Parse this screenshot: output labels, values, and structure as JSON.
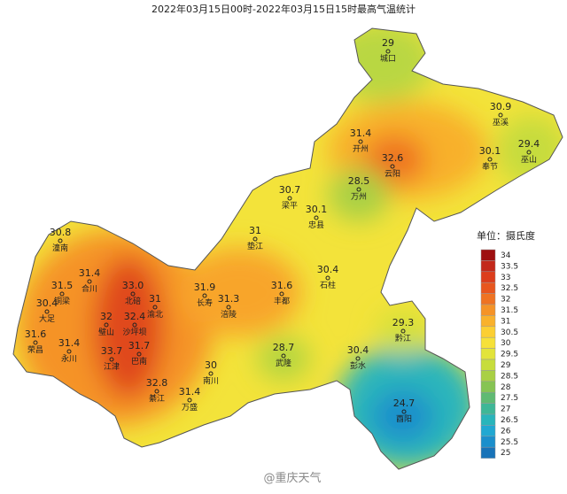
{
  "title": "2022年03月15日00时-2022年03月15日15时最高气温统计",
  "stations": [
    {
      "value": "29",
      "name": "城口"
    },
    {
      "value": "30.9",
      "name": "巫溪"
    },
    {
      "value": "31.4",
      "name": "开州"
    },
    {
      "value": "32.6",
      "name": "云阳"
    },
    {
      "value": "30.1",
      "name": "奉节"
    },
    {
      "value": "29.4",
      "name": "巫山"
    },
    {
      "value": "28.5",
      "name": "万州"
    },
    {
      "value": "30.7",
      "name": "梁平"
    },
    {
      "value": "31",
      "name": "垫江"
    },
    {
      "value": "30.1",
      "name": "忠县"
    },
    {
      "value": "30.4",
      "name": "石柱"
    },
    {
      "value": "31.6",
      "name": "丰都"
    },
    {
      "value": "31.9",
      "name": "长寿"
    },
    {
      "value": "31.3",
      "name": "涪陵"
    },
    {
      "value": "30.8",
      "name": "潼南"
    },
    {
      "value": "31.4",
      "name": "合川"
    },
    {
      "value": "33.0",
      "name": "北碚"
    },
    {
      "value": "31",
      "name": "渝北"
    },
    {
      "value": "31.5",
      "name": "铜梁"
    },
    {
      "value": "30.4",
      "name": "大足"
    },
    {
      "value": "32",
      "name": "璧山"
    },
    {
      "value": "32.4",
      "name": "沙坪坝"
    },
    {
      "value": "31.6",
      "name": "荣昌"
    },
    {
      "value": "31.4",
      "name": "永川"
    },
    {
      "value": "33.7",
      "name": "江津"
    },
    {
      "value": "31.7",
      "name": "巴南"
    },
    {
      "value": "32.8",
      "name": "綦江"
    },
    {
      "value": "31.4",
      "name": "万盛"
    },
    {
      "value": "30",
      "name": "南川"
    },
    {
      "value": "28.7",
      "name": "武隆"
    },
    {
      "value": "30.4",
      "name": "彭水"
    },
    {
      "value": "29.3",
      "name": "黔江"
    },
    {
      "value": "24.7",
      "name": "酉阳"
    }
  ],
  "legend": {
    "title": "单位：摄氏度",
    "ticks": [
      34,
      33.5,
      33,
      32.5,
      32,
      31.5,
      31,
      30.5,
      30,
      29.5,
      29,
      28.5,
      28,
      27.5,
      27,
      26.5,
      26,
      25.5,
      25
    ],
    "colors": [
      "#9e0f10",
      "#c3281a",
      "#dc3d1c",
      "#e8561e",
      "#ef7322",
      "#f59327",
      "#f9b12c",
      "#fccf32",
      "#f6e138",
      "#e2e43a",
      "#c7dd3c",
      "#a9d044",
      "#86c453",
      "#5fba73",
      "#3eb797",
      "#29b5bb",
      "#21a8d2",
      "#1b8fcc",
      "#1873b8"
    ]
  },
  "watermark": "@重庆天气"
}
